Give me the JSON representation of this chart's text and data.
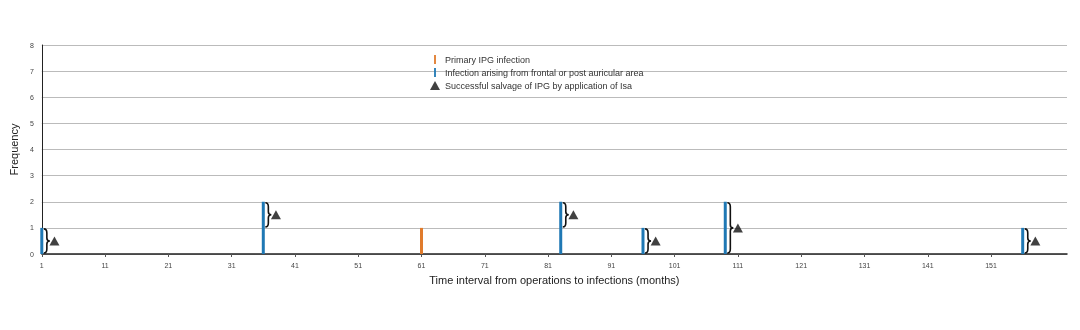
{
  "chart_data": {
    "type": "bar",
    "xlabel": "Time interval from operations to infections (months)",
    "ylabel": "Frequency",
    "series": [
      {
        "name": "Primary IPG infection",
        "color": "#e07b2c",
        "x": [
          61
        ],
        "values": [
          1
        ]
      },
      {
        "name": "Infection arising from frontal or post auricular area",
        "color": "#1f78b4",
        "x": [
          1,
          36,
          83,
          96,
          109,
          156
        ],
        "values": [
          1,
          2,
          2,
          1,
          2,
          1
        ]
      },
      {
        "name": "Successful salvage of IPG by application of Isa",
        "type": "scatter",
        "color": "#111111",
        "x": [
          3,
          38,
          85,
          98,
          111,
          158
        ],
        "values": [
          0.5,
          1.5,
          1.5,
          0.5,
          1,
          0.5
        ]
      }
    ],
    "marker": "triangle",
    "xlim": [
      1,
      163
    ],
    "xticks": [
      1,
      11,
      21,
      31,
      41,
      51,
      61,
      71,
      81,
      91,
      101,
      111,
      121,
      131,
      141,
      151
    ],
    "ylim": [
      0,
      8
    ],
    "yticks": [
      0,
      1,
      2,
      3,
      4,
      5,
      6,
      7,
      8
    ],
    "grid": "y",
    "legend": "top"
  }
}
